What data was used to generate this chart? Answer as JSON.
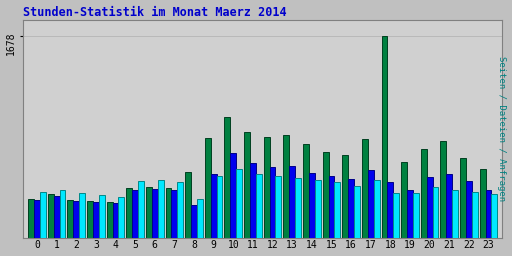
{
  "title": "Stunden-Statistik im Monat Maerz 2014",
  "ylabel": "Seiten / Dateien / Anfragen",
  "ytick_label": "1678",
  "ytick_value": 1678,
  "background_color": "#c0c0c0",
  "plot_bg_color": "#d0d0d0",
  "title_color": "#0000cc",
  "ylabel_color": "#008080",
  "bar_width": 0.3,
  "cyan_color": "#00e8ff",
  "blue_color": "#0000ee",
  "green_color": "#008040",
  "cyan_edge": "#008888",
  "blue_edge": "#000088",
  "green_edge": "#004020",
  "cyan": [
    380,
    395,
    370,
    355,
    340,
    470,
    480,
    465,
    320,
    510,
    570,
    530,
    510,
    500,
    480,
    465,
    430,
    480,
    370,
    370,
    420,
    400,
    380,
    365
  ],
  "blue": [
    310,
    350,
    305,
    295,
    285,
    395,
    405,
    395,
    275,
    530,
    700,
    620,
    590,
    595,
    540,
    510,
    490,
    560,
    460,
    400,
    505,
    530,
    470,
    400
  ],
  "green": [
    320,
    360,
    315,
    305,
    295,
    415,
    420,
    410,
    545,
    830,
    1000,
    880,
    840,
    855,
    775,
    715,
    685,
    820,
    1678,
    630,
    740,
    800,
    665,
    570
  ]
}
